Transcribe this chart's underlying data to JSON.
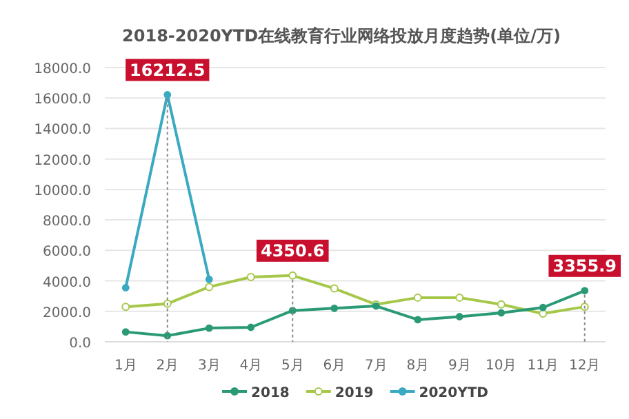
{
  "chart_data": {
    "type": "line",
    "title": "2018-2020YTD在线教育行业网络投放月度趋势(单位/万)",
    "categories": [
      "1月",
      "2月",
      "3月",
      "4月",
      "5月",
      "6月",
      "7月",
      "8月",
      "9月",
      "10月",
      "11月",
      "12月"
    ],
    "ylim": [
      0,
      18000
    ],
    "yticks": [
      {
        "value": 0,
        "label": "0.0"
      },
      {
        "value": 2000,
        "label": "2000.0"
      },
      {
        "value": 4000,
        "label": "4000.0"
      },
      {
        "value": 6000,
        "label": "6000.0"
      },
      {
        "value": 8000,
        "label": "8000.0"
      },
      {
        "value": 10000,
        "label": "10000.0"
      },
      {
        "value": 12000,
        "label": "12000.0"
      },
      {
        "value": 14000,
        "label": "14000.0"
      },
      {
        "value": 16000,
        "label": "16000.0"
      },
      {
        "value": 18000,
        "label": "18000.0"
      }
    ],
    "grid": "y",
    "ref_lines": [
      {
        "axis": "x",
        "value": "2月",
        "color": "#888888",
        "line_style": "dotted"
      },
      {
        "axis": "x",
        "value": "5月",
        "color": "#888888",
        "line_style": "dotted"
      },
      {
        "axis": "x",
        "value": "12月",
        "color": "#888888",
        "line_style": "dotted"
      }
    ],
    "legend": "bottom",
    "marker": "circle",
    "line_style": "solid",
    "series": [
      {
        "name": "2018",
        "color": "#2a9a76",
        "values": [
          650,
          400,
          900,
          950,
          2050,
          2200,
          2350,
          1450,
          1650,
          1900,
          2250,
          3355.9
        ],
        "value_labels": [
          null,
          null,
          null,
          null,
          null,
          null,
          null,
          null,
          null,
          null,
          null,
          "3355.9"
        ]
      },
      {
        "name": "2019",
        "color": "#a6c84a",
        "values": [
          2300,
          2500,
          3600,
          4250,
          4350.6,
          3500,
          2450,
          2900,
          2900,
          2450,
          1850,
          2300
        ],
        "value_labels": [
          null,
          null,
          null,
          null,
          "4350.6",
          null,
          null,
          null,
          null,
          null,
          null,
          null
        ]
      },
      {
        "name": "2020YTD",
        "color": "#3aa9c2",
        "values": [
          3550,
          16212.5,
          4100,
          null,
          null,
          null,
          null,
          null,
          null,
          null,
          null,
          null
        ],
        "value_labels": [
          null,
          "16212.5",
          null,
          null,
          null,
          null,
          null,
          null,
          null,
          null,
          null,
          null
        ]
      }
    ]
  }
}
